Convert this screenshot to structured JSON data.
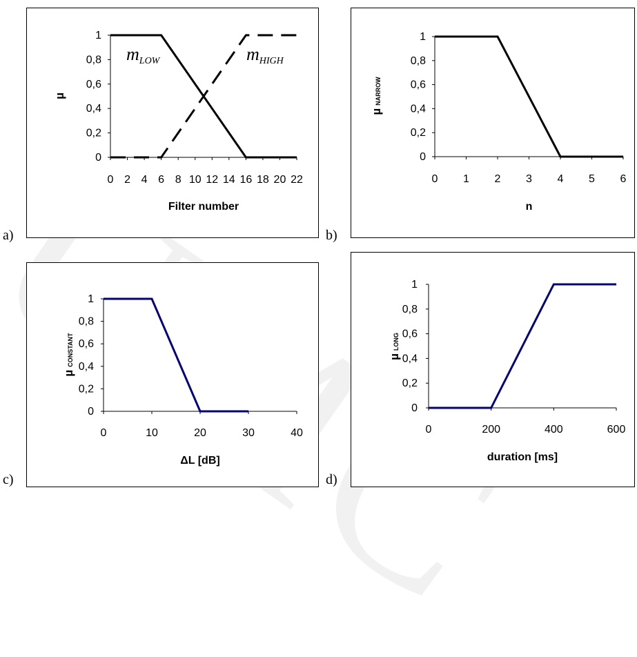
{
  "panels": [
    {
      "letter": "a)"
    },
    {
      "letter": "b)"
    },
    {
      "letter": "c)"
    },
    {
      "letter": "d)"
    }
  ],
  "watermark": "UMC",
  "chart_data": [
    {
      "type": "line",
      "xlabel": "Filter number",
      "ylabel": "µ",
      "xticks": [
        "0",
        "2",
        "4",
        "6",
        "8",
        "10",
        "12",
        "14",
        "16",
        "18",
        "20",
        "22"
      ],
      "yticks": [
        "0",
        "0,2",
        "0,4",
        "0,6",
        "0,8",
        "1"
      ],
      "xlim": [
        0,
        22
      ],
      "ylim": [
        0,
        1
      ],
      "grid": false,
      "series": [
        {
          "name": "m_LOW",
          "name_main": "m",
          "name_sub": "LOW",
          "style": "solid",
          "color": "#000000",
          "x": [
            0,
            6,
            16,
            22
          ],
          "y": [
            1,
            1,
            0,
            0
          ]
        },
        {
          "name": "m_HIGH",
          "name_main": "m",
          "name_sub": "HIGH",
          "style": "dashed",
          "color": "#000000",
          "x": [
            0,
            6,
            16,
            22
          ],
          "y": [
            0,
            0,
            1,
            1
          ]
        }
      ]
    },
    {
      "type": "line",
      "xlabel": "n",
      "ylabel": "µ",
      "ylabel_sub": "NARROW",
      "xticks": [
        "0",
        "1",
        "2",
        "3",
        "4",
        "5",
        "6"
      ],
      "yticks": [
        "0",
        "0,2",
        "0,4",
        "0,6",
        "0,8",
        "1"
      ],
      "xlim": [
        0,
        6
      ],
      "ylim": [
        0,
        1
      ],
      "grid": false,
      "series": [
        {
          "style": "solid",
          "color": "#000000",
          "x": [
            0,
            2,
            4,
            6
          ],
          "y": [
            1,
            1,
            0,
            0
          ]
        }
      ]
    },
    {
      "type": "line",
      "xlabel": "ΔL [dB]",
      "ylabel": "µ",
      "ylabel_sub": "CONSTANT",
      "xticks": [
        "0",
        "10",
        "20",
        "30",
        "40"
      ],
      "yticks": [
        "0",
        "0,2",
        "0,4",
        "0,6",
        "0,8",
        "1"
      ],
      "xlim": [
        0,
        40
      ],
      "ylim": [
        0,
        1
      ],
      "grid": false,
      "series": [
        {
          "style": "solid",
          "color": "#000080",
          "x": [
            0,
            10,
            20,
            30
          ],
          "y": [
            1,
            1,
            0,
            0
          ]
        }
      ]
    },
    {
      "type": "line",
      "xlabel": "duration [ms]",
      "ylabel": "µ",
      "ylabel_sub": "LONG",
      "xticks": [
        "0",
        "200",
        "400",
        "600"
      ],
      "yticks": [
        "0",
        "0,2",
        "0,4",
        "0,6",
        "0,8",
        "1"
      ],
      "xlim": [
        0,
        600
      ],
      "ylim": [
        0,
        1
      ],
      "grid": false,
      "series": [
        {
          "style": "solid",
          "color": "#000080",
          "x": [
            0,
            200,
            400,
            600
          ],
          "y": [
            0,
            0,
            1,
            1
          ]
        }
      ]
    }
  ]
}
